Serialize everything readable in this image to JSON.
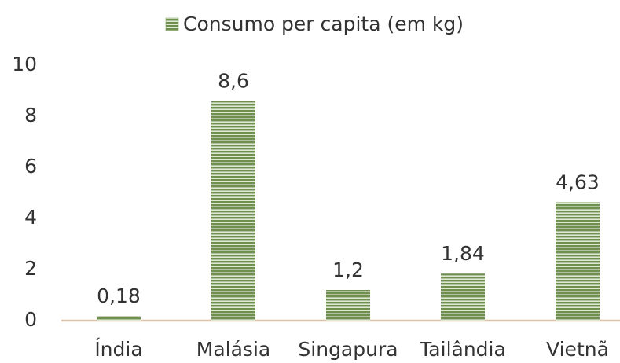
{
  "chart_data": {
    "type": "bar",
    "categories": [
      "Índia",
      "Malásia",
      "Singapura",
      "Tailândia",
      "Vietnã"
    ],
    "series": [
      {
        "name": "Consumo per capita (em kg)",
        "color": "#6e8f4e",
        "values": [
          0.18,
          8.6,
          1.2,
          1.84,
          4.63
        ],
        "value_labels": [
          "0,18",
          "8,6",
          "1,2",
          "1,84",
          "4,63"
        ]
      }
    ],
    "ylim": [
      0,
      10
    ],
    "yticks": [
      0,
      2,
      4,
      6,
      8,
      10
    ],
    "grid": false,
    "legend": "top"
  }
}
